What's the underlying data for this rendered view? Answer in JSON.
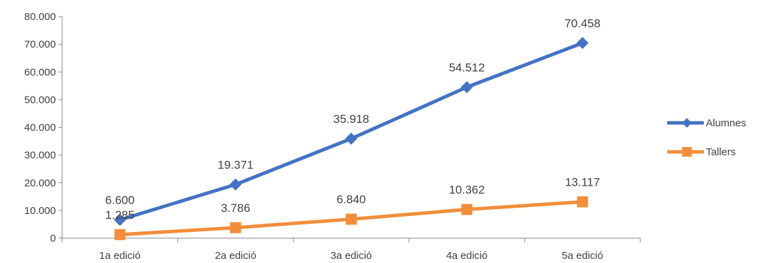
{
  "chart_data": {
    "type": "line",
    "categories": [
      "1a edició",
      "2a edició",
      "3a edició",
      "4a edició",
      "5a edició"
    ],
    "series": [
      {
        "name": "Alumnes",
        "values": [
          6600,
          19371,
          35918,
          54512,
          70458
        ],
        "labels": [
          "6.600",
          "19.371",
          "35.918",
          "54.512",
          "70.458"
        ],
        "color": "#4472C4",
        "marker": "diamond"
      },
      {
        "name": "Tallers",
        "values": [
          1285,
          3786,
          6840,
          10362,
          13117
        ],
        "labels": [
          "1.285",
          "3.786",
          "6.840",
          "10.362",
          "13.117"
        ],
        "color": "#F28E3B",
        "marker": "square"
      }
    ],
    "ylim": [
      0,
      80000
    ],
    "yticks": [
      0,
      10000,
      20000,
      30000,
      40000,
      50000,
      60000,
      70000,
      80000
    ],
    "ytick_labels": [
      "0",
      "10.000",
      "20.000",
      "30.000",
      "40.000",
      "50.000",
      "60.000",
      "70.000",
      "80.000"
    ],
    "grid": false,
    "legend_position": "right"
  }
}
